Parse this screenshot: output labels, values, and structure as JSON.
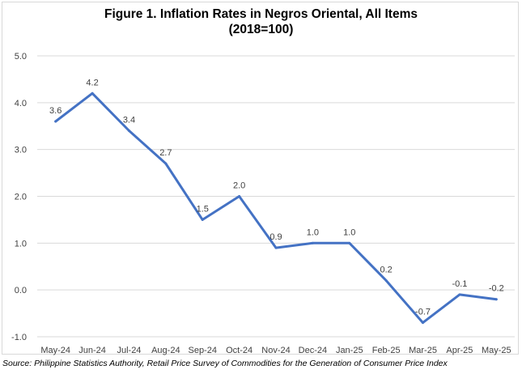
{
  "chart_data": {
    "type": "line",
    "title": "Figure 1. Inflation Rates in Negros Oriental, All Items",
    "subtitle": "(2018=100)",
    "categories": [
      "May-24",
      "Jun-24",
      "Jul-24",
      "Aug-24",
      "Sep-24",
      "Oct-24",
      "Nov-24",
      "Dec-24",
      "Jan-25",
      "Feb-25",
      "Mar-25",
      "Apr-25",
      "May-25"
    ],
    "series": [
      {
        "values": [
          3.6,
          4.2,
          3.4,
          2.7,
          1.5,
          2.0,
          0.9,
          1.0,
          1.0,
          0.2,
          -0.7,
          -0.1,
          -0.2
        ]
      }
    ],
    "data_labels": [
      "3.6",
      "4.2",
      "3.4",
      "2.7",
      "1.5",
      "2.0",
      "0.9",
      "1.0",
      "1.0",
      "0.2",
      "-0.7",
      "-0.1",
      "-0.2"
    ],
    "ylim": [
      -1.0,
      5.0
    ],
    "yticks": [
      -1.0,
      0.0,
      1.0,
      2.0,
      3.0,
      4.0,
      5.0
    ],
    "ytick_labels": [
      "-1.0",
      "0.0",
      "1.0",
      "2.0",
      "3.0",
      "4.0",
      "5.0"
    ],
    "xlabel": "",
    "ylabel": "",
    "grid": true,
    "line_color": "#4472c4",
    "grid_color": "#d9d9d9"
  },
  "source_note": "Source: Philippine Statistics Authority, Retail Price Survey of Commodities for the Generation of Consumer Price Index"
}
